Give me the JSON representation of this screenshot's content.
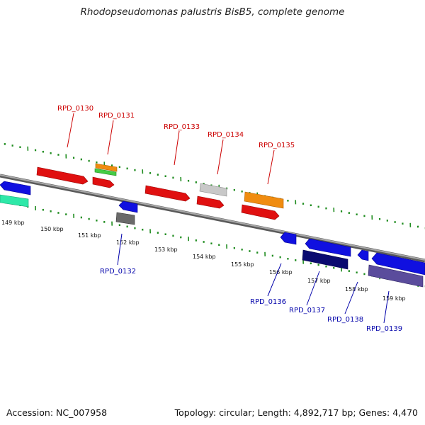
{
  "title": "Rhodopseudomonas palustris BisB5, complete genome",
  "footer": {
    "accession": "Accession: NC_007958",
    "summary": "Topology: circular; Length: 4,892,717 bp; Genes: 4,470"
  },
  "colors": {
    "backbone": "#808080",
    "ticks": "#1f8c1f",
    "forward_label": "#cc0000",
    "reverse_label": "#0000aa"
  },
  "scale_labels": [
    "149 kbp",
    "150 kbp",
    "151 kbp",
    "152 kbp",
    "153 kbp",
    "154 kbp",
    "155 kbp",
    "156 kbp",
    "157 kbp",
    "158 kbp",
    "159 kbp"
  ],
  "forward_gene_labels": [
    "RPD_0130",
    "RPD_0131",
    "RPD_0133",
    "RPD_0134",
    "RPD_0135"
  ],
  "reverse_gene_labels": [
    "RPD_0132",
    "RPD_0136",
    "RPD_0137",
    "RPD_0138",
    "RPD_0139"
  ]
}
